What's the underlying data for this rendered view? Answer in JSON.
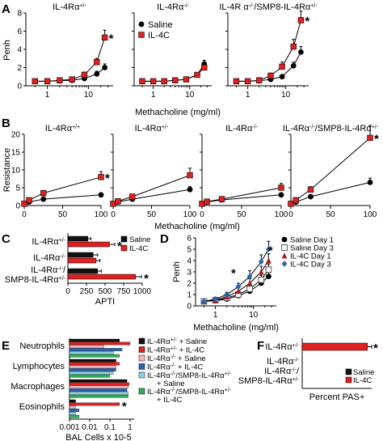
{
  "panels": [
    {
      "id": "A",
      "label": "A",
      "type": "line",
      "scale": "log",
      "ylabel": "Penh",
      "xlabel": "Methacholine (mg/ml)",
      "ylim": [
        0,
        8
      ],
      "yticks": [
        "0",
        "2",
        "4",
        "6",
        "8"
      ],
      "xticks": [
        "1",
        "10"
      ],
      "legend": {
        "items": [
          "Saline",
          "IL-4C"
        ]
      },
      "subplots": [
        {
          "title": "IL-4Rα+/-",
          "star_series": "IL-4C",
          "series": [
            {
              "name": "Saline",
              "marker": "circle",
              "color": "#000000",
              "x": [
                0.5,
                1,
                2,
                4,
                8,
                16,
                25
              ],
              "y": [
                0.5,
                0.5,
                0.55,
                0.6,
                0.8,
                1.3,
                2.0
              ],
              "err": [
                0.1,
                0.1,
                0.1,
                0.1,
                0.15,
                0.3,
                0.4
              ]
            },
            {
              "name": "IL-4C",
              "marker": "square",
              "color": "#e02020",
              "x": [
                0.5,
                1,
                2,
                4,
                8,
                16,
                25
              ],
              "y": [
                0.5,
                0.5,
                0.6,
                0.7,
                1.2,
                2.6,
                5.3
              ],
              "err": [
                0.1,
                0.1,
                0.1,
                0.15,
                0.3,
                0.4,
                0.8
              ]
            }
          ]
        },
        {
          "title": "IL-4Rα-/-",
          "series": [
            {
              "name": "Saline",
              "marker": "circle",
              "color": "#000000",
              "x": [
                0.5,
                1,
                2,
                4,
                8,
                16,
                25
              ],
              "y": [
                0.5,
                0.5,
                0.5,
                0.6,
                0.7,
                1.2,
                2.4
              ],
              "err": [
                0.1,
                0.1,
                0.1,
                0.1,
                0.15,
                0.25,
                0.4
              ]
            },
            {
              "name": "IL-4C",
              "marker": "square",
              "color": "#e02020",
              "x": [
                0.5,
                1,
                2,
                4,
                8,
                16,
                25
              ],
              "y": [
                0.5,
                0.5,
                0.5,
                0.6,
                0.7,
                1.2,
                2.0
              ],
              "err": [
                0.1,
                0.1,
                0.1,
                0.1,
                0.15,
                0.25,
                0.4
              ]
            }
          ]
        },
        {
          "title": "IL-4R α-/-/SMP8-IL-4Rα+/-",
          "star_series": "IL-4C",
          "series": [
            {
              "name": "Saline",
              "marker": "circle",
              "color": "#000000",
              "x": [
                0.5,
                1,
                2,
                4,
                8,
                16,
                25
              ],
              "y": [
                0.5,
                0.5,
                0.55,
                0.7,
                1.0,
                2.2,
                3.7
              ],
              "err": [
                0.1,
                0.1,
                0.1,
                0.1,
                0.2,
                0.4,
                0.6
              ]
            },
            {
              "name": "IL-4C",
              "marker": "square",
              "color": "#e02020",
              "x": [
                0.5,
                1,
                2,
                4,
                8,
                16,
                25
              ],
              "y": [
                0.5,
                0.5,
                0.6,
                1.1,
                2.1,
                4.3,
                7.2
              ],
              "err": [
                0.1,
                0.1,
                0.15,
                0.3,
                0.5,
                0.8,
                1.0
              ]
            }
          ]
        }
      ]
    },
    {
      "id": "B",
      "label": "B",
      "type": "line",
      "scale": "linear",
      "ylabel": "Resistance",
      "xlabel": "Methacholine (mg/ml)",
      "ylim": [
        0,
        20
      ],
      "yticks": [
        "0",
        "5",
        "10",
        "15",
        "20"
      ],
      "xlim": [
        0,
        100
      ],
      "xticks": [
        "0",
        "50",
        "100"
      ],
      "subplots": [
        {
          "title": "IL-4Rα+/+",
          "star_series": "IL-4C",
          "series": [
            {
              "name": "Saline",
              "marker": "circle",
              "color": "#000000",
              "x": [
                0,
                6.25,
                25,
                100
              ],
              "y": [
                0.5,
                1,
                1.8,
                3
              ],
              "err": [
                0.2,
                0.2,
                0.3,
                0.4
              ]
            },
            {
              "name": "IL-4C",
              "marker": "square",
              "color": "#e02020",
              "x": [
                0,
                6.25,
                25,
                100
              ],
              "y": [
                0.5,
                1.5,
                3.5,
                8
              ],
              "err": [
                0.2,
                0.3,
                0.6,
                1.5
              ]
            }
          ]
        },
        {
          "title": "IL-4Rα+/-",
          "series": [
            {
              "name": "Saline",
              "marker": "circle",
              "color": "#000000",
              "x": [
                0,
                6.25,
                25,
                100
              ],
              "y": [
                0.5,
                1,
                1.8,
                4.5
              ],
              "err": [
                0.2,
                0.2,
                0.3,
                0.8
              ]
            },
            {
              "name": "IL-4C",
              "marker": "square",
              "color": "#e02020",
              "x": [
                0,
                6.25,
                25,
                100
              ],
              "y": [
                0.5,
                1.2,
                2.5,
                8.5
              ],
              "err": [
                0.2,
                0.3,
                0.5,
                2.0
              ]
            }
          ]
        },
        {
          "title": "IL-4Rα-/-",
          "series": [
            {
              "name": "Saline",
              "marker": "circle",
              "color": "#000000",
              "x": [
                0,
                6.25,
                25,
                100
              ],
              "y": [
                0.5,
                1,
                1.6,
                3
              ],
              "err": [
                0.2,
                0.2,
                0.3,
                0.5
              ]
            },
            {
              "name": "IL-4C",
              "marker": "square",
              "color": "#e02020",
              "x": [
                0,
                6.25,
                25,
                100
              ],
              "y": [
                0.5,
                1.1,
                1.8,
                5
              ],
              "err": [
                0.2,
                0.2,
                0.3,
                1.2
              ]
            }
          ]
        },
        {
          "title": "IL-4Rα-/-/SMP8-IL-4Rα+/-",
          "star_series": "IL-4C",
          "series": [
            {
              "name": "Saline",
              "marker": "circle",
              "color": "#000000",
              "x": [
                0,
                6.25,
                25,
                100
              ],
              "y": [
                0.5,
                1,
                2.5,
                6.5
              ],
              "err": [
                0.2,
                0.2,
                0.4,
                1.2
              ]
            },
            {
              "name": "IL-4C",
              "marker": "square",
              "color": "#e02020",
              "x": [
                0,
                6.25,
                25,
                100
              ],
              "y": [
                0.5,
                1.5,
                4.5,
                19
              ],
              "err": [
                0.2,
                0.3,
                0.8,
                3.5
              ]
            }
          ]
        }
      ]
    },
    {
      "id": "C",
      "label": "C",
      "type": "bar",
      "orientation": "horizontal",
      "xlabel": "APTI",
      "xlim": [
        0,
        1000
      ],
      "xticks": [
        "0",
        "250",
        "500",
        "750",
        "1000"
      ],
      "categories": [
        "IL-4Rα+/-",
        "IL-4Rα-/-",
        "IL-4Rα-/-/ SMP8-IL-4Rα+/-"
      ],
      "legend": {
        "items": [
          "Saline",
          "IL-4C"
        ]
      },
      "series": [
        {
          "name": "Saline",
          "color": "#111111",
          "values": [
            270,
            340,
            400
          ],
          "err": [
            40,
            60,
            50
          ]
        },
        {
          "name": "IL-4C",
          "color": "#e02020",
          "values": [
            560,
            380,
            910
          ],
          "err": [
            70,
            50,
            80
          ]
        }
      ],
      "star_categories": [
        0,
        2
      ]
    },
    {
      "id": "D",
      "label": "D",
      "type": "line",
      "scale": "log",
      "ylabel": "Penh",
      "xlabel": "Methacholine (mg/ml)",
      "ylim": [
        0,
        6
      ],
      "yticks": [
        "0",
        "1",
        "2",
        "3",
        "4",
        "5",
        "6"
      ],
      "xticks": [
        "1",
        "10"
      ],
      "legend": {
        "items": [
          "Saline Day 1",
          "Saline Day 3",
          "IL-4C Day 1",
          "IL-4C Day 3"
        ]
      },
      "stars": [
        {
          "x": 3,
          "y": 2.9
        },
        {
          "x": 28,
          "y": 4.9
        }
      ],
      "series": [
        {
          "name": "Saline Day 1",
          "marker": "circle",
          "color": "#000000",
          "x": [
            0.5,
            1,
            2,
            4,
            8,
            16,
            25
          ],
          "y": [
            0.4,
            0.45,
            0.6,
            0.9,
            1.3,
            2.0,
            2.6
          ],
          "err": [
            0.1,
            0.1,
            0.1,
            0.2,
            0.2,
            0.3,
            0.4
          ]
        },
        {
          "name": "Saline Day 3",
          "marker": "square-open",
          "color": "#555555",
          "x": [
            0.5,
            1,
            2,
            4,
            8,
            16,
            25
          ],
          "y": [
            0.4,
            0.5,
            0.7,
            1.0,
            1.5,
            2.3,
            3.2
          ],
          "err": [
            0.1,
            0.1,
            0.15,
            0.2,
            0.3,
            0.4,
            0.5
          ]
        },
        {
          "name": "IL-4C Day 1",
          "marker": "triangle",
          "color": "#b11b1b",
          "x": [
            0.5,
            1,
            2,
            4,
            8,
            16,
            25
          ],
          "y": [
            0.4,
            0.5,
            0.8,
            1.3,
            2.0,
            3.0,
            4.0
          ],
          "err": [
            0.1,
            0.1,
            0.2,
            0.3,
            0.4,
            0.5,
            0.6
          ]
        },
        {
          "name": "IL-4C Day 3",
          "marker": "diamond",
          "color": "#2a64b0",
          "x": [
            0.5,
            1,
            2,
            4,
            8,
            16,
            25
          ],
          "y": [
            0.4,
            0.6,
            1.0,
            1.7,
            2.6,
            3.9,
            5.0
          ],
          "err": [
            0.1,
            0.15,
            0.2,
            0.3,
            0.5,
            0.6,
            0.7
          ]
        }
      ]
    },
    {
      "id": "E",
      "label": "E",
      "type": "bar",
      "orientation": "horizontal",
      "scale": "log",
      "xlabel": "BAL Cells x 10-5",
      "xticks": [
        "0.001",
        "0.01",
        "0.1",
        "1"
      ],
      "categories": [
        "Neutrophils",
        "Lymphocytes",
        "Macrophages",
        "Eosinophils"
      ],
      "legend": {
        "items": [
          "IL-4Rα+/- + Saline",
          "IL-4Rα+/- + IL-4C",
          "IL-4Rα-/- + Saline",
          "IL-4Rα-/- + IL-4C",
          "IL-4Rα-/-/SMP8-IL-4Rα+/- + Saline",
          "IL-4Rα-/-/SMP8-IL-4Rα+/- + IL-4C"
        ]
      },
      "series": [
        {
          "name": "IL-4Rα+/- + Saline",
          "color": "#111111",
          "values": [
            0.3,
            0.2,
            0.7,
            0.002
          ]
        },
        {
          "name": "IL-4Rα+/- + IL-4C",
          "color": "#e02020",
          "values": [
            1.0,
            0.3,
            0.9,
            0.3
          ]
        },
        {
          "name": "IL-4Rα-/- + Saline",
          "color": "#f2b8c0",
          "values": [
            0.05,
            0.2,
            0.8,
            0.002
          ]
        },
        {
          "name": "IL-4Rα-/- + IL-4C",
          "color": "#2a64b0",
          "values": [
            0.4,
            0.2,
            0.7,
            0.003
          ]
        },
        {
          "name": "IL-4Rα-/-/SMP8-IL-4Rα+/- + Saline",
          "color": "#8fd3e3",
          "values": [
            0.15,
            0.15,
            0.8,
            0.002
          ]
        },
        {
          "name": "IL-4Rα-/-/SMP8-IL-4Rα+/- + IL-4C",
          "color": "#2fae5a",
          "values": [
            0.3,
            0.1,
            0.8,
            0.003
          ]
        }
      ],
      "star_categories": [
        3
      ]
    },
    {
      "id": "F",
      "label": "F",
      "type": "bar",
      "orientation": "horizontal",
      "xlabel": "Percent PAS+",
      "xlim": [
        0,
        50
      ],
      "categories": [
        "IL-4Rα+/-",
        "IL-4Rα-/-",
        "IL-4Rα-/-/ SMP8-IL-4Rα+/-"
      ],
      "legend": {
        "items": [
          "Saline",
          "IL-4C"
        ]
      },
      "series": [
        {
          "name": "Saline",
          "color": "#111111",
          "values": [
            0,
            0,
            0
          ]
        },
        {
          "name": "IL-4C",
          "color": "#e02020",
          "values": [
            47,
            0,
            0
          ],
          "err": [
            3,
            0,
            0
          ]
        }
      ],
      "star_categories": [
        0
      ]
    }
  ],
  "chart_data": [
    {
      "panel": "A",
      "type": "line",
      "xlabel": "Methacholine (mg/ml)",
      "ylabel": "Penh",
      "ylim": [
        0,
        8
      ],
      "xscale": "log",
      "subplots": [
        "IL-4Rα+/-",
        "IL-4Rα-/-",
        "IL-4R α-/-/SMP8-IL-4Rα+/-"
      ]
    },
    {
      "panel": "B",
      "type": "line",
      "xlabel": "Methacholine (mg/ml)",
      "ylabel": "Resistance",
      "ylim": [
        0,
        20
      ],
      "xlim": [
        0,
        100
      ],
      "subplots": [
        "IL-4Rα+/+",
        "IL-4Rα+/-",
        "IL-4Rα-/-",
        "IL-4Rα-/-/SMP8-IL-4Rα+/-"
      ]
    },
    {
      "panel": "C",
      "type": "bar",
      "xlabel": "APTI",
      "xlim": [
        0,
        1000
      ],
      "categories": [
        "IL-4Rα+/-",
        "IL-4Rα-/-",
        "IL-4Rα-/-/ SMP8-IL-4Rα+/-"
      ],
      "series": [
        {
          "name": "Saline",
          "values": [
            270,
            340,
            400
          ]
        },
        {
          "name": "IL-4C",
          "values": [
            560,
            380,
            910
          ]
        }
      ]
    },
    {
      "panel": "D",
      "type": "line",
      "xlabel": "Methacholine (mg/ml)",
      "ylabel": "Penh",
      "ylim": [
        0,
        6
      ],
      "xscale": "log"
    },
    {
      "panel": "E",
      "type": "bar",
      "xlabel": "BAL Cells x 10-5",
      "xscale": "log",
      "categories": [
        "Neutrophils",
        "Lymphocytes",
        "Macrophages",
        "Eosinophils"
      ]
    },
    {
      "panel": "F",
      "type": "bar",
      "xlabel": "Percent PAS+",
      "xlim": [
        0,
        50
      ],
      "categories": [
        "IL-4Rα+/-",
        "IL-4Rα-/-",
        "IL-4Rα-/-/ SMP8-IL-4Rα+/-"
      ],
      "series": [
        {
          "name": "Saline",
          "values": [
            0,
            0,
            0
          ]
        },
        {
          "name": "IL-4C",
          "values": [
            47,
            0,
            0
          ]
        }
      ]
    }
  ]
}
